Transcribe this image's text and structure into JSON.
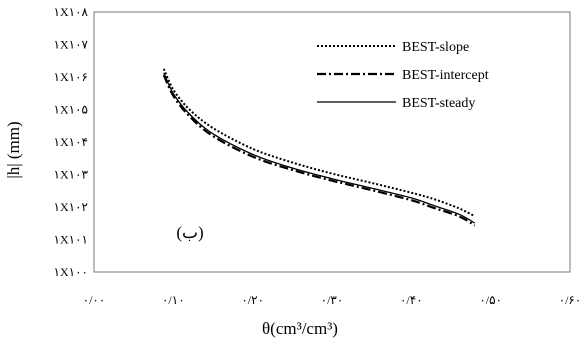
{
  "chart_data": {
    "type": "line",
    "title": "",
    "xlabel": "θ(cm³/cm³)",
    "ylabel": "|h|  (mm)",
    "panel_label": "(ب)",
    "y_scale": "log",
    "xlim": [
      0.0,
      0.6
    ],
    "ylim": [
      1,
      100000000
    ],
    "x_ticks": [
      0.0,
      0.1,
      0.2,
      0.3,
      0.4,
      0.5,
      0.6
    ],
    "x_tick_labels": [
      "۰/۰۰",
      "۰/۱۰",
      "۰/۲۰",
      "۰/۳۰",
      "۰/۴۰",
      "۰/۵۰",
      "۰/۶۰"
    ],
    "y_ticks": [
      1,
      10,
      100,
      1000,
      10000,
      100000,
      1000000,
      10000000,
      100000000
    ],
    "y_tick_labels": [
      "۱X۱۰۰",
      "۱X۱۰۱",
      "۱X۱۰۲",
      "۱X۱۰۳",
      "۱X۱۰۴",
      "۱X۱۰۵",
      "۱X۱۰۶",
      "۱X۱۰۷",
      "۱X۱۰۸"
    ],
    "grid": false,
    "legend_position": "top-right",
    "series": [
      {
        "name": "BEST-slope",
        "style": "dotted",
        "color": "#000000",
        "x": [
          0.088,
          0.1,
          0.12,
          0.15,
          0.2,
          0.25,
          0.3,
          0.35,
          0.4,
          0.43,
          0.46,
          0.48
        ],
        "y": [
          1780000,
          407000,
          102000,
          26900,
          6170,
          2340,
          1070,
          550,
          275,
          170,
          91,
          52
        ]
      },
      {
        "name": "BEST-intercept",
        "style": "dashdot",
        "color": "#000000",
        "x": [
          0.088,
          0.1,
          0.12,
          0.15,
          0.2,
          0.25,
          0.3,
          0.35,
          0.4,
          0.43,
          0.46,
          0.48
        ],
        "y": [
          1150000,
          263000,
          63000,
          15100,
          3550,
          1380,
          646,
          331,
          162,
          91,
          52,
          27
        ]
      },
      {
        "name": "BEST-steady",
        "style": "solid",
        "color": "#000000",
        "x": [
          0.088,
          0.1,
          0.12,
          0.15,
          0.2,
          0.25,
          0.3,
          0.35,
          0.4,
          0.43,
          0.46,
          0.48
        ],
        "y": [
          1350000,
          309000,
          74000,
          17800,
          4170,
          1580,
          741,
          380,
          191,
          107,
          60,
          32
        ]
      }
    ]
  }
}
